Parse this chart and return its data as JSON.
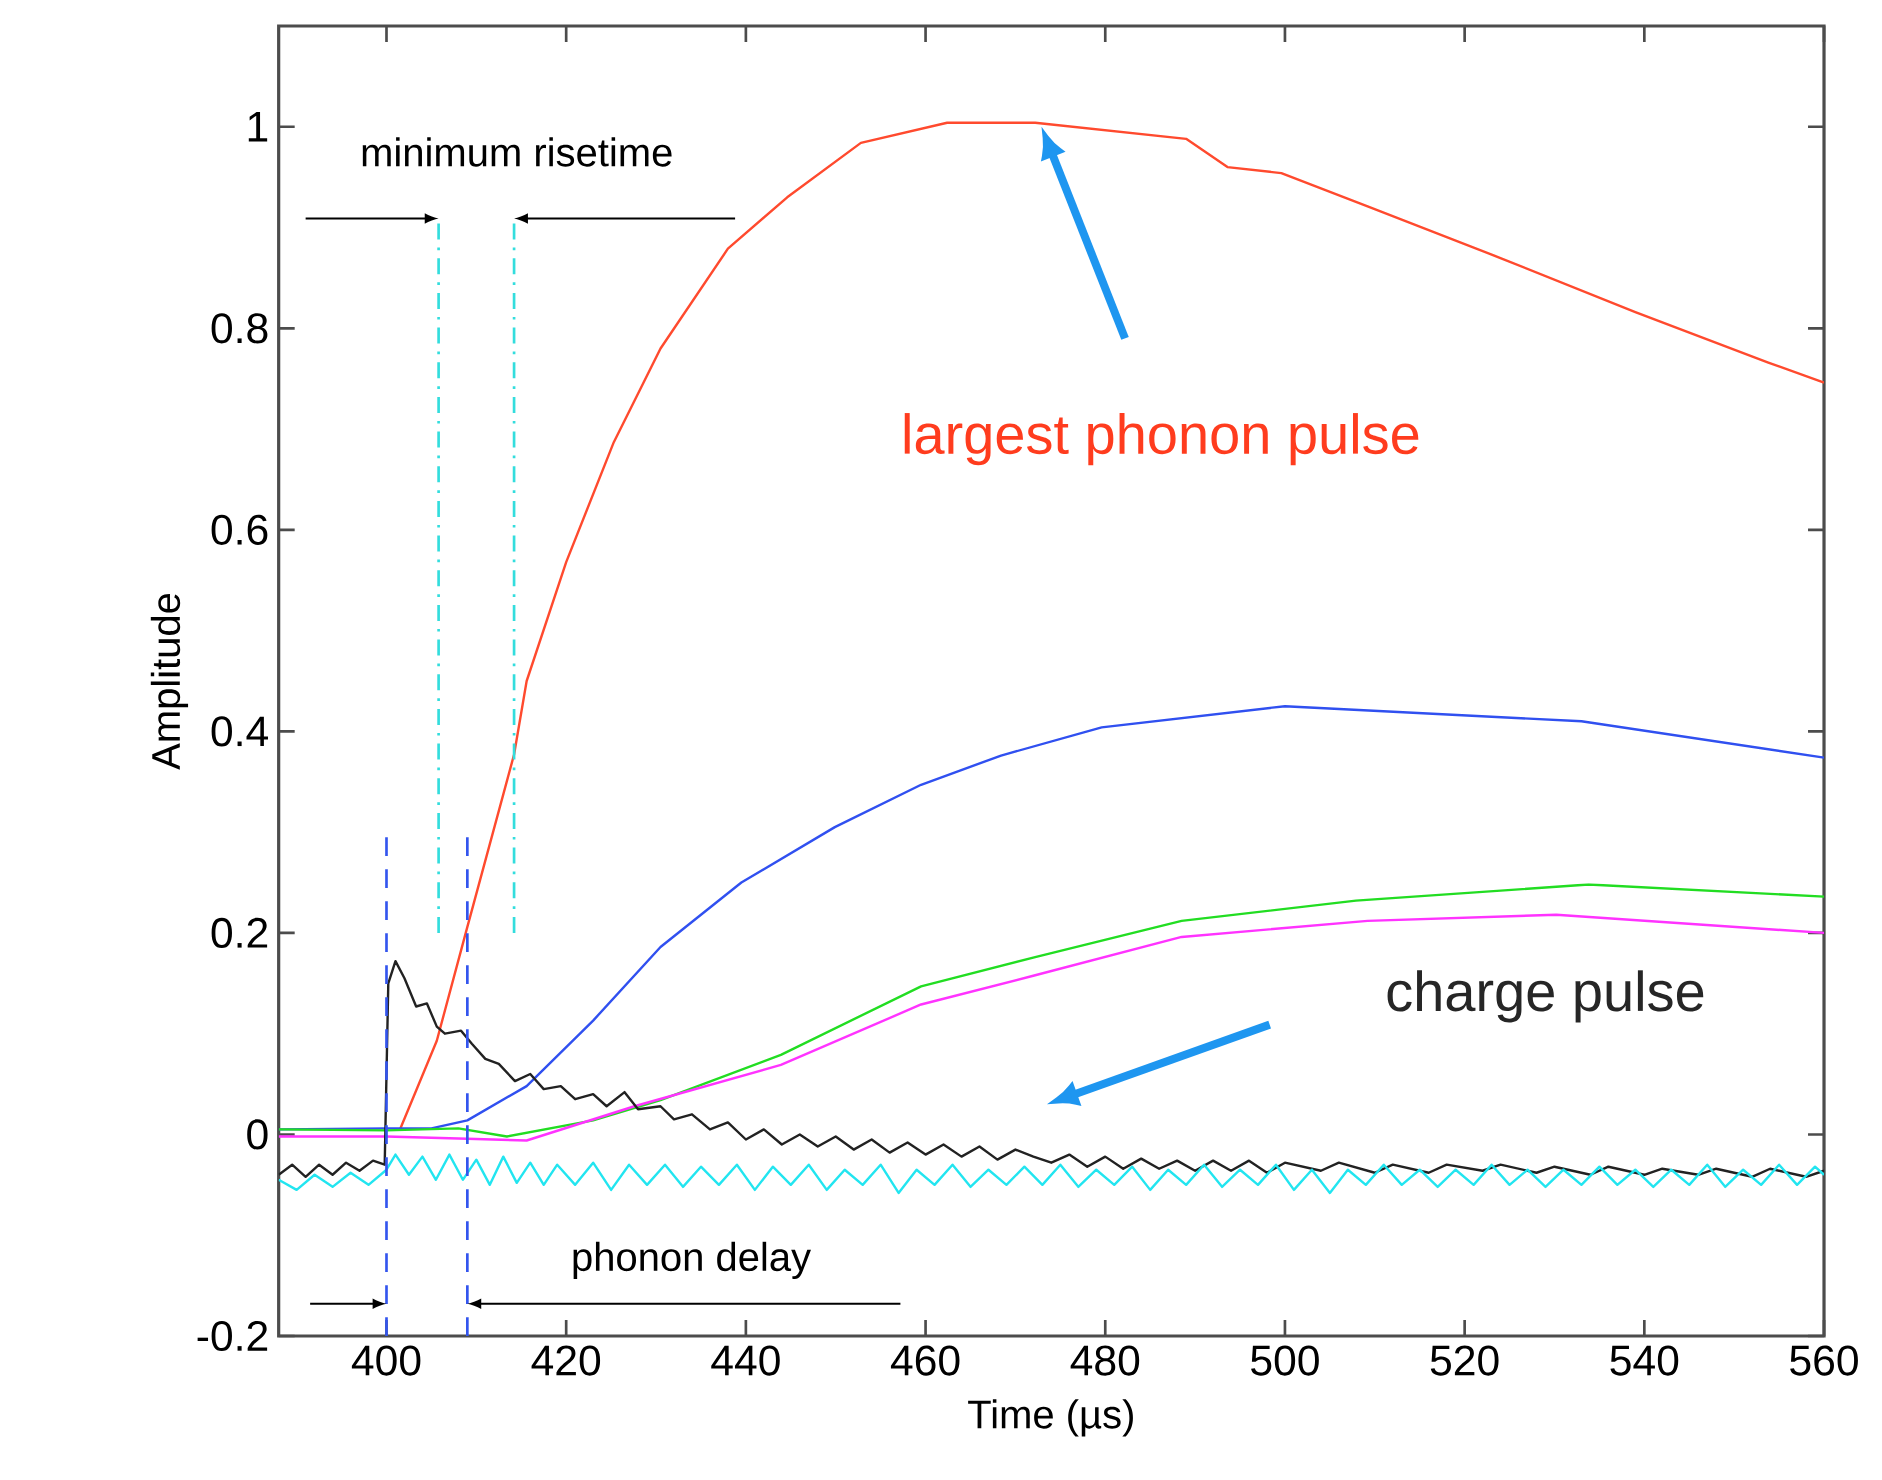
{
  "chart_data": {
    "type": "line",
    "xlabel": "Time (µs)",
    "ylabel": "Amplitude",
    "xlim": [
      388,
      560
    ],
    "ylim": [
      -0.2,
      1.1
    ],
    "xticks": [
      400,
      420,
      440,
      460,
      480,
      500,
      520,
      540,
      560
    ],
    "yticks": [
      -0.2,
      0,
      0.2,
      0.4,
      0.6,
      0.8,
      1
    ],
    "grid": false,
    "marker": "none",
    "line_style": "solid",
    "series": [
      {
        "color": "#ff4a2e",
        "x": [
          401.5,
          405.6,
          409,
          414.2,
          415.6,
          420,
          425.3,
          430.5,
          438,
          444.6,
          452.8,
          462.4,
          472.2,
          489,
          493.6,
          499.6,
          509.2,
          524.2,
          539,
          553.8,
          560
        ],
        "values": [
          0.005,
          0.093,
          0.206,
          0.377,
          0.45,
          0.568,
          0.687,
          0.78,
          0.879,
          0.93,
          0.984,
          1.004,
          1.004,
          0.988,
          0.96,
          0.954,
          0.921,
          0.869,
          0.816,
          0.766,
          0.746
        ]
      },
      {
        "color": "#3050f0",
        "x": [
          388,
          400,
          405,
          409,
          415.6,
          423,
          430.5,
          439.5,
          449.9,
          459.5,
          468.4,
          479.6,
          500,
          533,
          560
        ],
        "values": [
          0.005,
          0.006,
          0.006,
          0.014,
          0.048,
          0.113,
          0.186,
          0.25,
          0.305,
          0.347,
          0.376,
          0.404,
          0.425,
          0.41,
          0.374
        ]
      },
      {
        "color": "#22dd22",
        "x": [
          388,
          400,
          408,
          413.4,
          423,
          430.5,
          443.9,
          459.5,
          472.2,
          488.5,
          507.9,
          533.8,
          560
        ],
        "values": [
          0.005,
          0.004,
          0.006,
          -0.002,
          0.014,
          0.034,
          0.079,
          0.147,
          0.176,
          0.212,
          0.232,
          0.248,
          0.236
        ]
      },
      {
        "color": "#ff33ff",
        "x": [
          388,
          400,
          408,
          415.6,
          427.6,
          443.9,
          459.5,
          472.2,
          488.5,
          509.2,
          530.2,
          560
        ],
        "values": [
          -0.002,
          -0.002,
          -0.004,
          -0.006,
          0.028,
          0.069,
          0.129,
          0.158,
          0.196,
          0.212,
          0.218,
          0.2
        ]
      },
      {
        "color": "#222222",
        "x": [
          388,
          389.5,
          391,
          392.5,
          394,
          395.5,
          397,
          398.5,
          399.8,
          400.2,
          401,
          402,
          403.3,
          404.5,
          405.6,
          406.5,
          408.3,
          409.5,
          411,
          412.5,
          414.3,
          416,
          417.5,
          419.4,
          421,
          423,
          424.5,
          426.5,
          428,
          430.5,
          432,
          434,
          436,
          438,
          440,
          442,
          444,
          446,
          448,
          450,
          452,
          454,
          456,
          458,
          460,
          462,
          464,
          466,
          468,
          470,
          472,
          474,
          476,
          478,
          480,
          482,
          484,
          486,
          488,
          490,
          492,
          494,
          496,
          498,
          500,
          504,
          506,
          510,
          512,
          516,
          518,
          522,
          524,
          528,
          530,
          534,
          536,
          540,
          542,
          546,
          548,
          552,
          554,
          558,
          560
        ],
        "values": [
          -0.04,
          -0.03,
          -0.042,
          -0.03,
          -0.04,
          -0.028,
          -0.036,
          -0.026,
          -0.03,
          0.15,
          0.172,
          0.155,
          0.127,
          0.13,
          0.107,
          0.1,
          0.103,
          0.09,
          0.075,
          0.07,
          0.053,
          0.06,
          0.045,
          0.048,
          0.035,
          0.04,
          0.028,
          0.042,
          0.025,
          0.028,
          0.015,
          0.02,
          0.005,
          0.012,
          -0.005,
          0.005,
          -0.01,
          0.0,
          -0.012,
          -0.002,
          -0.015,
          -0.005,
          -0.018,
          -0.008,
          -0.02,
          -0.01,
          -0.022,
          -0.012,
          -0.025,
          -0.015,
          -0.022,
          -0.028,
          -0.02,
          -0.032,
          -0.022,
          -0.034,
          -0.024,
          -0.034,
          -0.026,
          -0.036,
          -0.026,
          -0.036,
          -0.026,
          -0.038,
          -0.028,
          -0.036,
          -0.028,
          -0.038,
          -0.03,
          -0.038,
          -0.03,
          -0.036,
          -0.03,
          -0.038,
          -0.032,
          -0.04,
          -0.032,
          -0.04,
          -0.034,
          -0.04,
          -0.034,
          -0.042,
          -0.034,
          -0.042,
          -0.036
        ]
      },
      {
        "color": "#22e5f0",
        "x": [
          388,
          390,
          392,
          394,
          396,
          398,
          400,
          401,
          402.5,
          404,
          405.5,
          407,
          408.5,
          410,
          411.5,
          413,
          414.5,
          416,
          417.5,
          419,
          421,
          423,
          425,
          427,
          429,
          431,
          433,
          435,
          437,
          439,
          441,
          443,
          445,
          447,
          449,
          451,
          453,
          455,
          457,
          459,
          461,
          463,
          465,
          467,
          469,
          471,
          473,
          475,
          477,
          479,
          481,
          483,
          485,
          487,
          489,
          491,
          493,
          495,
          497,
          499,
          501,
          503,
          505,
          507,
          509,
          511,
          513,
          515,
          517,
          519,
          521,
          523,
          525,
          527,
          529,
          531,
          533,
          535,
          537,
          539,
          541,
          543,
          545,
          547,
          549,
          551,
          553,
          555,
          557,
          559,
          560
        ],
        "values": [
          -0.045,
          -0.055,
          -0.04,
          -0.052,
          -0.038,
          -0.05,
          -0.035,
          -0.02,
          -0.04,
          -0.022,
          -0.045,
          -0.02,
          -0.045,
          -0.025,
          -0.05,
          -0.022,
          -0.048,
          -0.028,
          -0.05,
          -0.03,
          -0.05,
          -0.028,
          -0.055,
          -0.03,
          -0.05,
          -0.03,
          -0.052,
          -0.032,
          -0.05,
          -0.03,
          -0.055,
          -0.032,
          -0.05,
          -0.03,
          -0.055,
          -0.035,
          -0.05,
          -0.03,
          -0.058,
          -0.035,
          -0.05,
          -0.03,
          -0.052,
          -0.035,
          -0.05,
          -0.032,
          -0.05,
          -0.03,
          -0.052,
          -0.035,
          -0.05,
          -0.032,
          -0.055,
          -0.035,
          -0.05,
          -0.03,
          -0.052,
          -0.035,
          -0.05,
          -0.03,
          -0.055,
          -0.035,
          -0.058,
          -0.035,
          -0.05,
          -0.03,
          -0.05,
          -0.035,
          -0.052,
          -0.035,
          -0.05,
          -0.03,
          -0.05,
          -0.035,
          -0.052,
          -0.035,
          -0.05,
          -0.032,
          -0.05,
          -0.035,
          -0.052,
          -0.035,
          -0.05,
          -0.03,
          -0.052,
          -0.035,
          -0.05,
          -0.03,
          -0.05,
          -0.032,
          -0.04
        ]
      }
    ],
    "ref_lines": [
      {
        "axis": "x",
        "value": 400,
        "color": "#3355ee",
        "line_style": "dashed"
      },
      {
        "axis": "x",
        "value": 409,
        "color": "#3355ee",
        "line_style": "dashed"
      },
      {
        "axis": "x",
        "value": 405.8,
        "color": "#33dddd",
        "line_style": "dashdot"
      },
      {
        "axis": "x",
        "value": 414.2,
        "color": "#33dddd",
        "line_style": "dashdot"
      }
    ],
    "annotations": [
      "minimum risetime",
      "largest phonon pulse",
      "charge pulse",
      "phonon delay"
    ]
  }
}
